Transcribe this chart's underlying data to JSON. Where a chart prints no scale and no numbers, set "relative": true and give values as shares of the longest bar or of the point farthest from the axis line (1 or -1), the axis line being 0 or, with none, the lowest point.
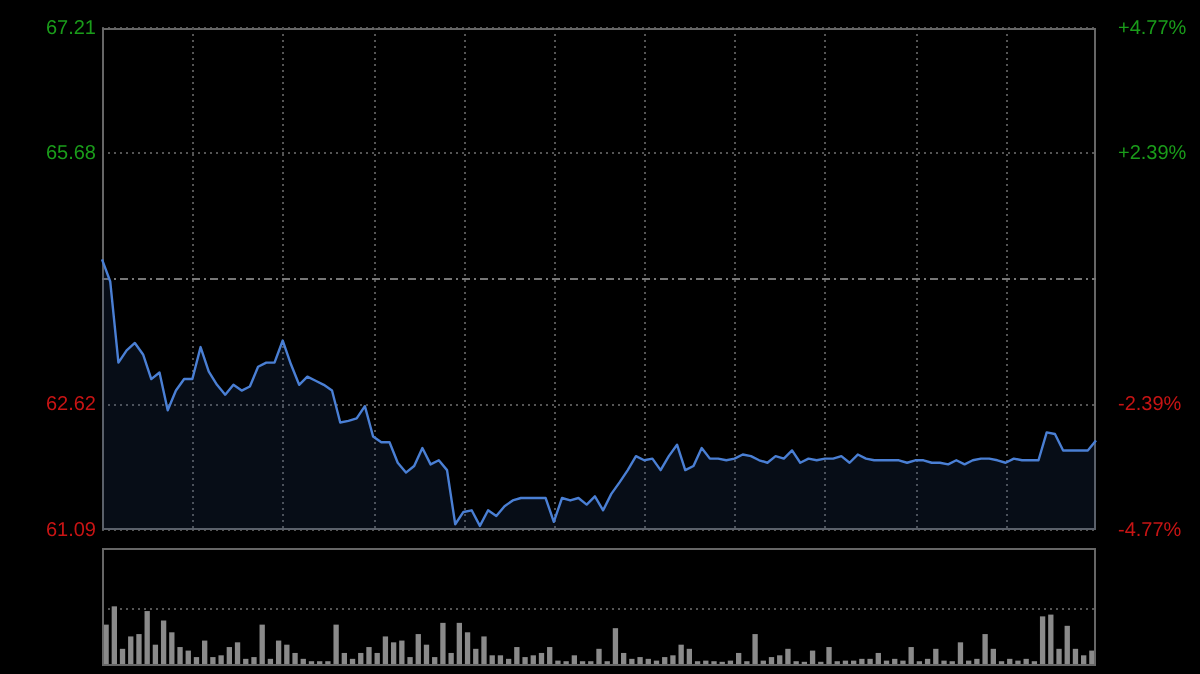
{
  "chart_data": [
    {
      "type": "area",
      "categories": [
        null,
        null,
        null,
        null,
        null,
        null,
        null,
        null,
        null,
        null,
        null,
        null,
        null,
        null,
        null,
        null,
        null,
        null,
        null,
        null,
        null,
        null,
        null,
        null,
        null,
        null,
        null,
        null,
        null,
        null,
        null,
        null,
        null,
        null,
        null,
        null,
        null,
        null,
        null,
        null,
        null,
        null,
        null,
        null,
        null,
        null,
        null,
        null,
        null,
        null,
        null,
        null,
        null,
        null,
        null,
        null,
        null,
        null,
        null,
        null,
        null,
        null,
        null,
        null,
        null,
        null,
        null,
        null,
        null,
        null,
        null,
        null,
        null,
        null,
        null,
        null,
        null,
        null,
        null,
        null,
        null,
        null,
        null,
        null,
        null,
        null,
        null,
        null,
        null,
        null,
        null,
        null,
        null,
        null,
        null,
        null,
        null,
        null,
        null,
        null,
        null,
        null,
        null,
        null,
        null,
        null,
        null,
        null,
        null,
        null,
        null,
        null,
        null,
        null,
        null,
        null,
        null,
        null,
        null,
        null,
        null,
        null
      ],
      "series": [
        {
          "color": "#4a7fd4",
          "values": [
            64.39,
            64.12,
            63.13,
            63.28,
            63.37,
            63.23,
            62.93,
            63.01,
            62.55,
            62.79,
            62.93,
            62.93,
            63.32,
            63.02,
            62.86,
            62.74,
            62.86,
            62.79,
            62.84,
            63.08,
            63.13,
            63.13,
            63.4,
            63.11,
            62.86,
            62.96,
            62.91,
            62.86,
            62.79,
            62.4,
            62.42,
            62.45,
            62.6,
            62.23,
            62.16,
            62.16,
            61.91,
            61.79,
            61.87,
            62.09,
            61.89,
            61.94,
            61.82,
            61.16,
            61.31,
            61.33,
            61.14,
            61.33,
            61.26,
            61.38,
            61.45,
            61.48,
            61.48,
            61.48,
            61.48,
            61.19,
            61.48,
            61.45,
            61.48,
            61.4,
            61.5,
            61.33,
            61.53,
            61.67,
            61.82,
            61.99,
            61.94,
            61.96,
            61.82,
            61.99,
            62.13,
            61.82,
            61.87,
            62.09,
            61.96,
            61.96,
            61.94,
            61.96,
            62.01,
            61.99,
            61.94,
            61.91,
            61.99,
            61.96,
            62.06,
            61.91,
            61.96,
            61.94,
            61.96,
            61.96,
            61.99,
            61.91,
            62.01,
            61.96,
            61.94,
            61.94,
            61.94,
            61.94,
            61.91,
            61.94,
            61.94,
            61.91,
            61.91,
            61.89,
            61.94,
            61.89,
            61.94,
            61.96,
            61.96,
            61.94,
            61.91,
            61.96,
            61.94,
            61.94,
            61.94,
            62.28,
            62.26,
            62.06,
            62.06,
            62.06,
            62.06,
            62.18
          ]
        }
      ],
      "ylim": [
        61.09,
        67.21
      ],
      "yticks": [
        61.09,
        62.62,
        65.68,
        67.21
      ],
      "y2lim": [
        -4.77,
        4.77
      ],
      "y2ticks": [
        {
          "value": -4.77,
          "label": "-4.77%"
        },
        {
          "value": -2.39,
          "label": "-2.39%"
        },
        {
          "value": 2.39,
          "label": "+2.39%"
        },
        {
          "value": 4.77,
          "label": "+4.77%"
        }
      ],
      "ref_lines": [
        {
          "axis": "y",
          "value": 64.15,
          "label": null
        }
      ],
      "grid": true
    },
    {
      "type": "bar",
      "relative": true,
      "color": "#8a8a8a",
      "grid": true,
      "categories": [
        null,
        null,
        null,
        null,
        null,
        null,
        null,
        null,
        null,
        null,
        null,
        null,
        null,
        null,
        null,
        null,
        null,
        null,
        null,
        null,
        null,
        null,
        null,
        null,
        null,
        null,
        null,
        null,
        null,
        null,
        null,
        null,
        null,
        null,
        null,
        null,
        null,
        null,
        null,
        null,
        null,
        null,
        null,
        null,
        null,
        null,
        null,
        null,
        null,
        null,
        null,
        null,
        null,
        null,
        null,
        null,
        null,
        null,
        null,
        null,
        null,
        null,
        null,
        null,
        null,
        null,
        null,
        null,
        null,
        null,
        null,
        null,
        null,
        null,
        null,
        null,
        null,
        null,
        null,
        null,
        null,
        null,
        null,
        null,
        null,
        null,
        null,
        null,
        null,
        null,
        null,
        null,
        null,
        null,
        null,
        null,
        null,
        null,
        null,
        null,
        null,
        null,
        null,
        null,
        null,
        null,
        null,
        null,
        null,
        null,
        null,
        null,
        null,
        null,
        null,
        null,
        null,
        null,
        null,
        null,
        null
      ],
      "values": [
        0.69,
        1.0,
        0.28,
        0.49,
        0.53,
        0.92,
        0.35,
        0.76,
        0.56,
        0.31,
        0.25,
        0.14,
        0.42,
        0.14,
        0.17,
        0.31,
        0.39,
        0.11,
        0.14,
        0.69,
        0.11,
        0.42,
        0.35,
        0.21,
        0.11,
        0.07,
        0.07,
        0.07,
        0.69,
        0.21,
        0.11,
        0.21,
        0.31,
        0.21,
        0.49,
        0.39,
        0.42,
        0.14,
        0.53,
        0.35,
        0.14,
        0.72,
        0.21,
        0.72,
        0.56,
        0.28,
        0.49,
        0.17,
        0.17,
        0.11,
        0.31,
        0.14,
        0.17,
        0.21,
        0.31,
        0.08,
        0.07,
        0.17,
        0.07,
        0.07,
        0.28,
        0.07,
        0.63,
        0.21,
        0.11,
        0.14,
        0.11,
        0.08,
        0.14,
        0.17,
        0.35,
        0.28,
        0.07,
        0.08,
        0.07,
        0.06,
        0.08,
        0.21,
        0.07,
        0.53,
        0.08,
        0.14,
        0.17,
        0.28,
        0.07,
        0.06,
        0.25,
        0.06,
        0.31,
        0.07,
        0.08,
        0.08,
        0.11,
        0.11,
        0.21,
        0.08,
        0.11,
        0.08,
        0.31,
        0.07,
        0.11,
        0.28,
        0.08,
        0.07,
        0.39,
        0.08,
        0.11,
        0.53,
        0.28,
        0.07,
        0.11,
        0.08,
        0.11,
        0.07,
        0.83,
        0.86,
        0.28,
        0.67,
        0.28,
        0.17,
        0.25
      ]
    }
  ]
}
